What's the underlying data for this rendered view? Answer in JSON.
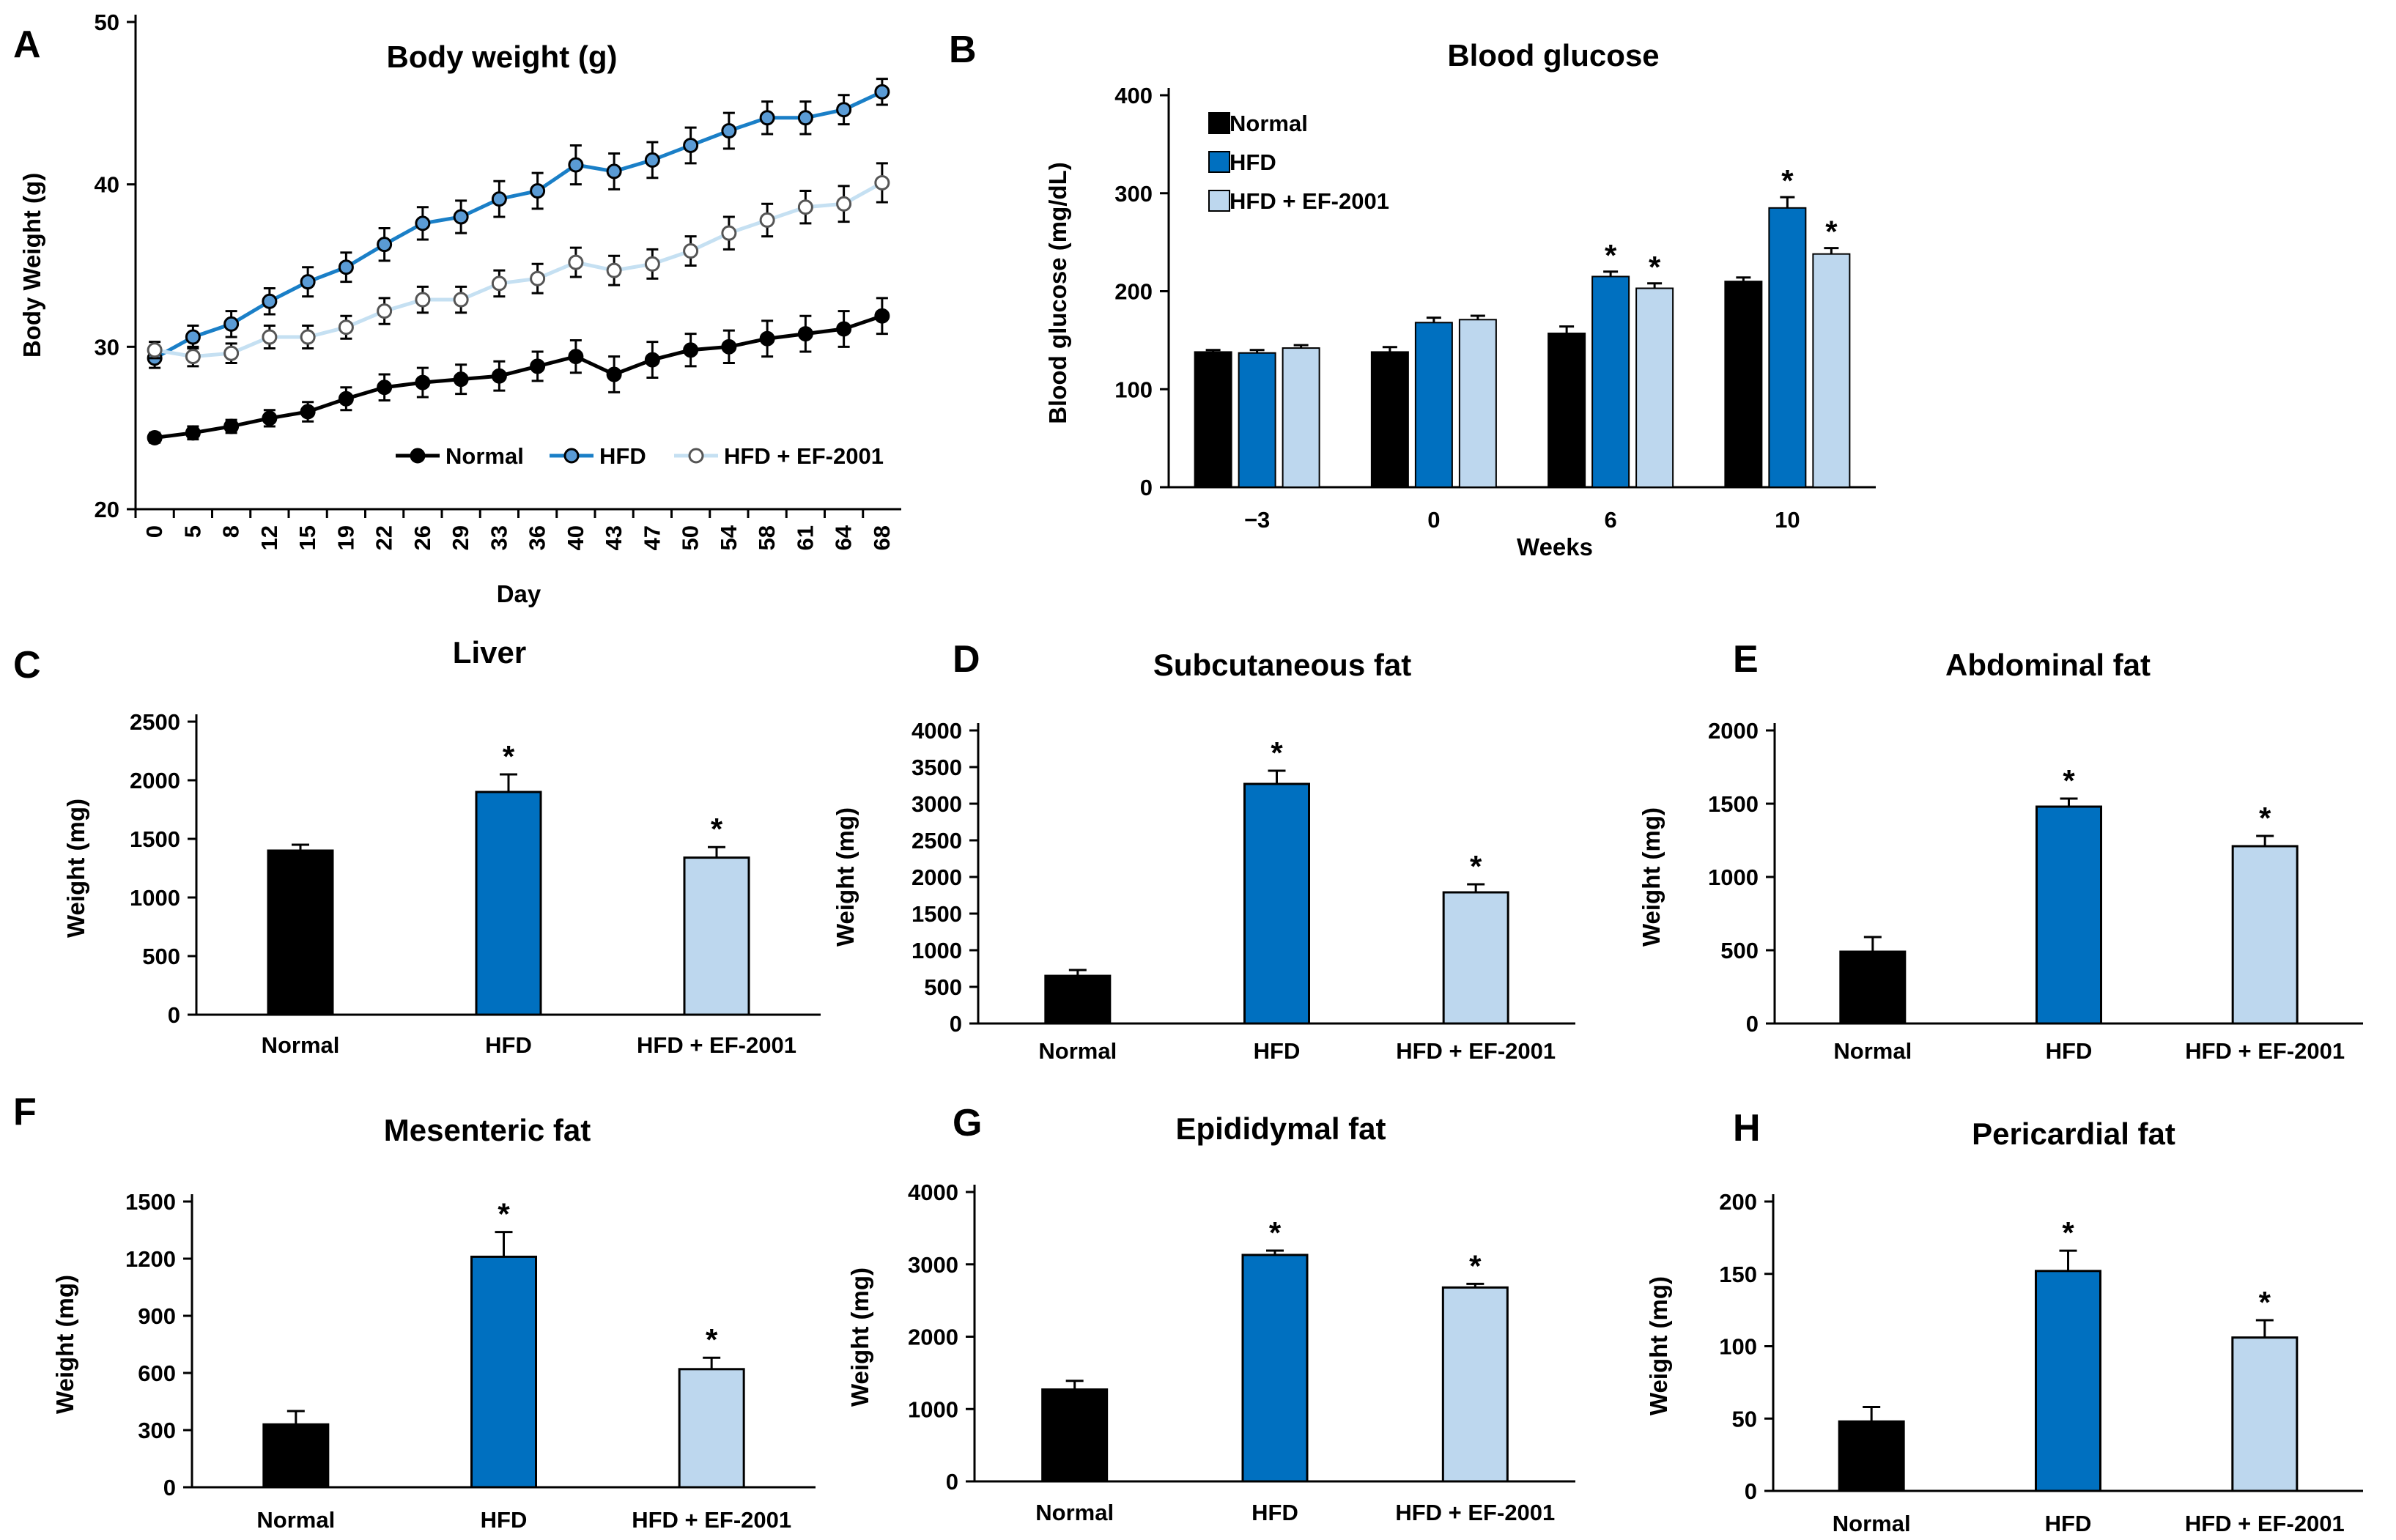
{
  "panels": [
    {
      "id": "A",
      "letter": "A",
      "type": "line",
      "title": "Body weight (g)",
      "xlabel": "Day",
      "ylabel": "Body Weight (g)",
      "ylim": [
        20,
        50
      ],
      "yticks": [
        20,
        30,
        40,
        50
      ],
      "categories": [
        "0",
        "5",
        "8",
        "12",
        "15",
        "19",
        "22",
        "26",
        "29",
        "33",
        "36",
        "40",
        "43",
        "47",
        "50",
        "54",
        "58",
        "61",
        "64",
        "68"
      ],
      "series": [
        {
          "name": "Normal",
          "color": "#000000",
          "marker": "filled",
          "values": [
            24.4,
            24.7,
            25.1,
            25.6,
            26.0,
            26.8,
            27.5,
            27.8,
            28.0,
            28.2,
            28.8,
            29.4,
            28.3,
            29.2,
            29.8,
            30.0,
            30.5,
            30.8,
            31.1,
            31.9
          ],
          "errors": [
            0.3,
            0.4,
            0.4,
            0.5,
            0.6,
            0.7,
            0.8,
            0.9,
            0.9,
            0.9,
            0.9,
            1.0,
            1.1,
            1.1,
            1.0,
            1.0,
            1.1,
            1.1,
            1.1,
            1.1
          ]
        },
        {
          "name": "HFD",
          "color": "#1a7fc7",
          "marker": "filled-light",
          "values": [
            29.3,
            30.6,
            31.4,
            32.8,
            34.0,
            34.9,
            36.3,
            37.6,
            38.0,
            39.1,
            39.6,
            41.2,
            40.8,
            41.5,
            42.4,
            43.3,
            44.1,
            44.1,
            44.6,
            45.7
          ],
          "errors": [
            0.6,
            0.7,
            0.8,
            0.8,
            0.9,
            0.9,
            1.0,
            1.0,
            1.0,
            1.1,
            1.1,
            1.2,
            1.1,
            1.1,
            1.1,
            1.1,
            1.0,
            1.0,
            0.9,
            0.8
          ]
        },
        {
          "name": "HFD + EF-2001",
          "color": "#c5e0f2",
          "marker": "open",
          "values": [
            29.8,
            29.4,
            29.6,
            30.6,
            30.6,
            31.2,
            32.2,
            32.9,
            32.9,
            33.9,
            34.2,
            35.2,
            34.7,
            35.1,
            35.9,
            37.0,
            37.8,
            38.6,
            38.8,
            40.1
          ],
          "errors": [
            0.5,
            0.6,
            0.6,
            0.7,
            0.7,
            0.7,
            0.8,
            0.8,
            0.8,
            0.8,
            0.9,
            0.9,
            0.9,
            0.9,
            0.9,
            1.0,
            1.0,
            1.0,
            1.1,
            1.2
          ]
        }
      ]
    },
    {
      "id": "B",
      "letter": "B",
      "type": "bar",
      "title": "Blood glucose",
      "xlabel": "Weeks",
      "ylabel": "Blood glucose (mg/dL)",
      "ylim": [
        0,
        400
      ],
      "yticks": [
        0,
        100,
        200,
        300,
        400
      ],
      "categories": [
        "−3",
        "0",
        "6",
        "10"
      ],
      "series": [
        {
          "name": "Normal",
          "color": "#000000",
          "values": [
            138,
            138,
            157,
            210
          ],
          "errors": [
            2,
            5,
            7,
            4
          ],
          "stars": [
            "",
            "",
            "",
            ""
          ]
        },
        {
          "name": "HFD",
          "color": "#0070c0",
          "values": [
            137,
            168,
            215,
            285
          ],
          "errors": [
            3,
            5,
            5,
            11
          ],
          "stars": [
            "",
            "",
            "*",
            "*"
          ]
        },
        {
          "name": "HFD + EF-2001",
          "color": "#bdd7ee",
          "values": [
            142,
            171,
            203,
            238
          ],
          "errors": [
            3,
            4,
            5,
            6
          ],
          "stars": [
            "",
            "",
            "*",
            "*"
          ]
        }
      ]
    },
    {
      "id": "C",
      "letter": "C",
      "type": "bar",
      "title": "Liver",
      "ylabel": "Weight (mg)",
      "ylim": [
        0,
        2500
      ],
      "yticks": [
        0,
        500,
        1000,
        1500,
        2000,
        2500
      ],
      "categories": [
        "Normal",
        "HFD",
        "HFD + EF-2001"
      ],
      "colors": [
        "#000000",
        "#0070c0",
        "#bdd7ee"
      ],
      "values": [
        1400,
        1900,
        1340
      ],
      "errors": [
        50,
        150,
        90
      ],
      "stars": [
        "",
        "*",
        "*"
      ]
    },
    {
      "id": "D",
      "letter": "D",
      "type": "bar",
      "title": "Subcutaneous fat",
      "ylabel": "Weight (mg)",
      "ylim": [
        0,
        4000
      ],
      "yticks": [
        0,
        500,
        1000,
        1500,
        2000,
        2500,
        3000,
        3500,
        4000
      ],
      "categories": [
        "Normal",
        "HFD",
        "HFD + EF-2001"
      ],
      "colors": [
        "#000000",
        "#0070c0",
        "#bdd7ee"
      ],
      "values": [
        650,
        3270,
        1790
      ],
      "errors": [
        80,
        180,
        110
      ],
      "stars": [
        "",
        "*",
        "*"
      ]
    },
    {
      "id": "E",
      "letter": "E",
      "type": "bar",
      "title": "Abdominal fat",
      "ylabel": "Weight (mg)",
      "ylim": [
        0,
        2000
      ],
      "yticks": [
        0,
        500,
        1000,
        1500,
        2000
      ],
      "categories": [
        "Normal",
        "HFD",
        "HFD + EF-2001"
      ],
      "colors": [
        "#000000",
        "#0070c0",
        "#bdd7ee"
      ],
      "values": [
        490,
        1480,
        1210
      ],
      "errors": [
        100,
        55,
        70
      ],
      "stars": [
        "",
        "*",
        "*"
      ]
    },
    {
      "id": "F",
      "letter": "F",
      "type": "bar",
      "title": "Mesenteric fat",
      "ylabel": "Weight (mg)",
      "ylim": [
        0,
        1500
      ],
      "yticks": [
        0,
        300,
        600,
        900,
        1200,
        1500
      ],
      "categories": [
        "Normal",
        "HFD",
        "HFD + EF-2001"
      ],
      "colors": [
        "#000000",
        "#0070c0",
        "#bdd7ee"
      ],
      "values": [
        330,
        1210,
        620
      ],
      "errors": [
        70,
        130,
        60
      ],
      "stars": [
        "",
        "*",
        "*"
      ]
    },
    {
      "id": "G",
      "letter": "G",
      "type": "bar",
      "title": "Epididymal fat",
      "ylabel": "Weight (mg)",
      "ylim": [
        0,
        4000
      ],
      "yticks": [
        0,
        1000,
        2000,
        3000,
        4000
      ],
      "categories": [
        "Normal",
        "HFD",
        "HFD + EF-2001"
      ],
      "colors": [
        "#000000",
        "#0070c0",
        "#bdd7ee"
      ],
      "values": [
        1270,
        3130,
        2680
      ],
      "errors": [
        120,
        60,
        50
      ],
      "stars": [
        "",
        "*",
        "*"
      ]
    },
    {
      "id": "H",
      "letter": "H",
      "type": "bar",
      "title": "Pericardial fat",
      "ylabel": "Weight (mg)",
      "ylim": [
        0,
        200
      ],
      "yticks": [
        0,
        50,
        100,
        150,
        200
      ],
      "categories": [
        "Normal",
        "HFD",
        "HFD + EF-2001"
      ],
      "colors": [
        "#000000",
        "#0070c0",
        "#bdd7ee"
      ],
      "values": [
        48,
        152,
        106
      ],
      "errors": [
        10,
        14,
        12
      ],
      "stars": [
        "",
        "*",
        "*"
      ]
    }
  ]
}
